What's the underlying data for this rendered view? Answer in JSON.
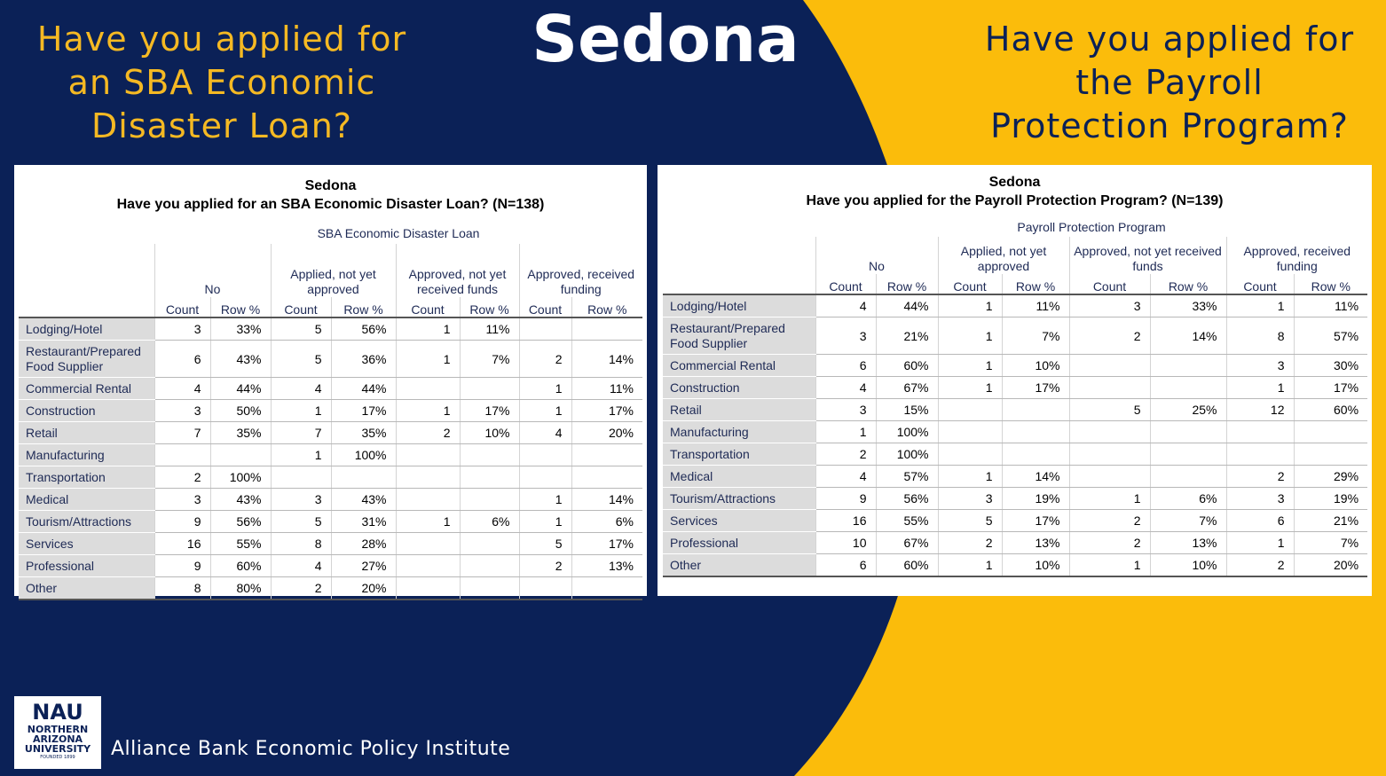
{
  "colors": {
    "navy": "#0b2157",
    "gold": "#f5b923",
    "white": "#ffffff"
  },
  "main_title": "Sedona",
  "headline_left": [
    "Have you applied for",
    "an SBA Economic",
    "Disaster Loan?"
  ],
  "headline_right": [
    "Have you applied for",
    "the Payroll",
    "Protection Program?"
  ],
  "sba_table": {
    "title_line1": "Sedona",
    "title_line2": "Have you applied for an SBA Economic Disaster Loan? (N=138)",
    "super_header": "SBA Economic Disaster Loan",
    "groups": [
      "No",
      "Applied, not yet approved",
      "Approved, not yet received funds",
      "Approved, received funding"
    ],
    "sub_count": "Count",
    "sub_pct": "Row %",
    "rows": [
      {
        "label": "Lodging/Hotel",
        "cells": [
          "3",
          "33%",
          "5",
          "56%",
          "1",
          "11%",
          "",
          ""
        ]
      },
      {
        "label": "Restaurant/Prepared Food Supplier",
        "cells": [
          "6",
          "43%",
          "5",
          "36%",
          "1",
          "7%",
          "2",
          "14%"
        ]
      },
      {
        "label": "Commercial Rental",
        "cells": [
          "4",
          "44%",
          "4",
          "44%",
          "",
          "",
          "1",
          "11%"
        ]
      },
      {
        "label": "Construction",
        "cells": [
          "3",
          "50%",
          "1",
          "17%",
          "1",
          "17%",
          "1",
          "17%"
        ]
      },
      {
        "label": "Retail",
        "cells": [
          "7",
          "35%",
          "7",
          "35%",
          "2",
          "10%",
          "4",
          "20%"
        ]
      },
      {
        "label": "Manufacturing",
        "cells": [
          "",
          "",
          "1",
          "100%",
          "",
          "",
          "",
          ""
        ]
      },
      {
        "label": "Transportation",
        "cells": [
          "2",
          "100%",
          "",
          "",
          "",
          "",
          "",
          ""
        ]
      },
      {
        "label": "Medical",
        "cells": [
          "3",
          "43%",
          "3",
          "43%",
          "",
          "",
          "1",
          "14%"
        ]
      },
      {
        "label": "Tourism/Attractions",
        "cells": [
          "9",
          "56%",
          "5",
          "31%",
          "1",
          "6%",
          "1",
          "6%"
        ]
      },
      {
        "label": "Services",
        "cells": [
          "16",
          "55%",
          "8",
          "28%",
          "",
          "",
          "5",
          "17%"
        ]
      },
      {
        "label": "Professional",
        "cells": [
          "9",
          "60%",
          "4",
          "27%",
          "",
          "",
          "2",
          "13%"
        ]
      },
      {
        "label": "Other",
        "cells": [
          "8",
          "80%",
          "2",
          "20%",
          "",
          "",
          "",
          ""
        ]
      }
    ]
  },
  "ppp_table": {
    "title_line1": "Sedona",
    "title_line2": "Have you applied for the Payroll Protection Program? (N=139)",
    "super_header": "Payroll Protection Program",
    "groups": [
      "No",
      "Applied, not yet approved",
      "Approved, not yet received funds",
      "Approved, received funding"
    ],
    "sub_count": "Count",
    "sub_pct": "Row %",
    "rows": [
      {
        "label": "Lodging/Hotel",
        "cells": [
          "4",
          "44%",
          "1",
          "11%",
          "3",
          "33%",
          "1",
          "11%"
        ]
      },
      {
        "label": "Restaurant/Prepared Food Supplier",
        "cells": [
          "3",
          "21%",
          "1",
          "7%",
          "2",
          "14%",
          "8",
          "57%"
        ]
      },
      {
        "label": "Commercial Rental",
        "cells": [
          "6",
          "60%",
          "1",
          "10%",
          "",
          "",
          "3",
          "30%"
        ]
      },
      {
        "label": "Construction",
        "cells": [
          "4",
          "67%",
          "1",
          "17%",
          "",
          "",
          "1",
          "17%"
        ]
      },
      {
        "label": "Retail",
        "cells": [
          "3",
          "15%",
          "",
          "",
          "5",
          "25%",
          "12",
          "60%"
        ]
      },
      {
        "label": "Manufacturing",
        "cells": [
          "1",
          "100%",
          "",
          "",
          "",
          "",
          "",
          ""
        ]
      },
      {
        "label": "Transportation",
        "cells": [
          "2",
          "100%",
          "",
          "",
          "",
          "",
          "",
          ""
        ]
      },
      {
        "label": "Medical",
        "cells": [
          "4",
          "57%",
          "1",
          "14%",
          "",
          "",
          "2",
          "29%"
        ]
      },
      {
        "label": "Tourism/Attractions",
        "cells": [
          "9",
          "56%",
          "3",
          "19%",
          "1",
          "6%",
          "3",
          "19%"
        ]
      },
      {
        "label": "Services",
        "cells": [
          "16",
          "55%",
          "5",
          "17%",
          "2",
          "7%",
          "6",
          "21%"
        ]
      },
      {
        "label": "Professional",
        "cells": [
          "10",
          "67%",
          "2",
          "13%",
          "2",
          "13%",
          "1",
          "7%"
        ]
      },
      {
        "label": "Other",
        "cells": [
          "6",
          "60%",
          "1",
          "10%",
          "1",
          "10%",
          "2",
          "20%"
        ]
      }
    ]
  },
  "logo": {
    "nau": "NAU",
    "name_lines": [
      "NORTHERN",
      "ARIZONA",
      "UNIVERSITY"
    ],
    "founded": "FOUNDED 1899"
  },
  "institute": "Alliance Bank Economic Policy Institute"
}
